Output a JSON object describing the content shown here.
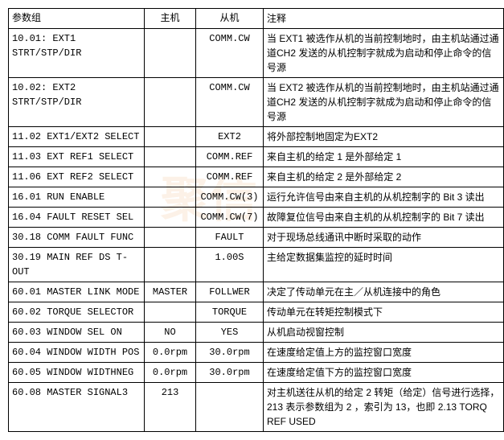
{
  "table": {
    "headers": [
      "参数组",
      "主机",
      "从机",
      "注释"
    ],
    "rows": [
      {
        "param": "10.01: EXT1 STRT/STP/DIR",
        "host": "",
        "slave": "COMM.CW",
        "note": "当 EXT1 被选作从机的当前控制地时，由主机站通过通道CH2 发送的从机控制字就成为启动和停止命令的信号源"
      },
      {
        "param": "10.02: EXT2 STRT/STP/DIR",
        "host": "",
        "slave": "COMM.CW",
        "note": "当 EXT2 被选作从机的当前控制地时，由主机站通过通道CH2 发送的从机控制字就成为启动和停止命令的信号源"
      },
      {
        "param": "11.02 EXT1/EXT2 SELECT",
        "host": "",
        "slave": "EXT2",
        "note": "将外部控制地固定为EXT2"
      },
      {
        "param": "11.03 EXT REF1 SELECT",
        "host": "",
        "slave": "COMM.REF",
        "note": "来自主机的给定 1 是外部给定 1"
      },
      {
        "param": "11.06 EXT REF2 SELECT",
        "host": "",
        "slave": "COMM.REF",
        "note": "来自主机的给定 2 是外部给定 2"
      },
      {
        "param": "16.01 RUN ENABLE",
        "host": "",
        "slave": "COMM.CW(3)",
        "note": "运行允许信号由来自主机的从机控制字的 Bit 3 读出"
      },
      {
        "param": "16.04 FAULT RESET SEL",
        "host": "",
        "slave": "COMM.CW(7)",
        "note": "故障复位信号由来自主机的从机控制字的 Bit 7 读出"
      },
      {
        "param": "30.18 COMM FAULT FUNC",
        "host": "",
        "slave": "FAULT",
        "note": "对于现场总线通讯中断时采取的动作"
      },
      {
        "param": "30.19 MAIN REF DS T-OUT",
        "host": "",
        "slave": "1.00S",
        "note": "主给定数据集监控的延时时间"
      },
      {
        "param": "60.01 MASTER LINK MODE",
        "host": "MASTER",
        "slave": "FOLLWER",
        "note": "决定了传动单元在主／从机连接中的角色"
      },
      {
        "param": "60.02 TORQUE SELECTOR",
        "host": "",
        "slave": "TORQUE",
        "note": "传动单元在转矩控制模式下"
      },
      {
        "param": "60.03 WINDOW SEL ON",
        "host": "NO",
        "slave": "YES",
        "note": "从机启动视窗控制"
      },
      {
        "param": "60.04 WINDOW WIDTH POS",
        "host": "0.0rpm",
        "slave": "30.0rpm",
        "note": "在速度给定值上方的监控窗口宽度"
      },
      {
        "param": "60.05 WINDOW WIDTHNEG",
        "host": "0.0rpm",
        "slave": "30.0rpm",
        "note": "在速度给定值下方的监控窗口宽度"
      },
      {
        "param": "60.08 MASTER SIGNAL3",
        "host": "213",
        "slave": "",
        "note": "对主机送往从机的给定 2 转矩（给定）信号进行选择，213 表示参数组为 2 ，索引为 13，也即 2.13 TORQ REF USED"
      }
    ]
  },
  "watermark": "聚信"
}
